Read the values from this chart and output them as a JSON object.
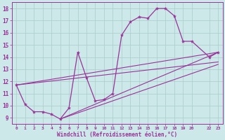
{
  "background_color": "#cce8e8",
  "grid_color": "#aacccc",
  "line_color": "#993399",
  "marker_color": "#993399",
  "xlabel": "Windchill (Refroidissement éolien,°C)",
  "xlabel_color": "#993399",
  "tick_color": "#993399",
  "ylim": [
    8.5,
    18.5
  ],
  "xlim": [
    -0.5,
    23.5
  ],
  "yticks": [
    9,
    10,
    11,
    12,
    13,
    14,
    15,
    16,
    17,
    18
  ],
  "xticks": [
    0,
    1,
    2,
    3,
    4,
    5,
    6,
    7,
    8,
    9,
    10,
    11,
    12,
    13,
    14,
    15,
    16,
    17,
    18,
    19,
    20,
    22,
    23
  ],
  "xtick_labels": [
    "0",
    "1",
    "2",
    "3",
    "4",
    "5",
    "6",
    "7",
    "8",
    "9",
    "10",
    "11",
    "12",
    "13",
    "14",
    "15",
    "16",
    "17",
    "18",
    "19",
    "20",
    "22",
    "23"
  ],
  "main_line": {
    "x": [
      0,
      1,
      2,
      3,
      4,
      5,
      6,
      7,
      8,
      9,
      10,
      11,
      12,
      13,
      14,
      15,
      16,
      17,
      18,
      19,
      20,
      22,
      23
    ],
    "y": [
      11.7,
      10.1,
      9.5,
      9.5,
      9.3,
      8.9,
      9.8,
      14.4,
      12.3,
      10.4,
      10.5,
      11.0,
      15.8,
      16.9,
      17.3,
      17.2,
      18.0,
      18.0,
      17.4,
      15.3,
      15.3,
      14.0,
      14.4
    ]
  },
  "diag_lines": [
    {
      "x": [
        0,
        23
      ],
      "y": [
        11.7,
        14.4
      ]
    },
    {
      "x": [
        0,
        23
      ],
      "y": [
        11.7,
        13.6
      ]
    },
    {
      "x": [
        5,
        23
      ],
      "y": [
        8.9,
        13.4
      ]
    },
    {
      "x": [
        5,
        23
      ],
      "y": [
        8.9,
        14.4
      ]
    }
  ]
}
